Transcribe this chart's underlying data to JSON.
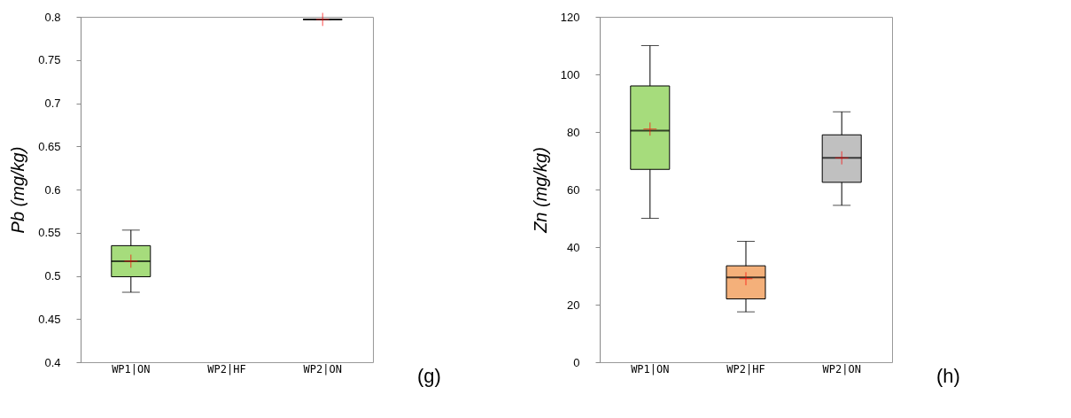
{
  "chart_data": [
    {
      "type": "box",
      "ylabel": "Pb (mg/kg)",
      "categories": [
        "WP1|ON",
        "WP2|HF",
        "WP2|ON"
      ],
      "colors": [
        "#a6dc7c",
        "#f4b07a",
        "#000000"
      ],
      "boxes": [
        {
          "low": 0.481,
          "q1": 0.499,
          "median": 0.517,
          "q3": 0.535,
          "high": 0.553,
          "mean": 0.517
        },
        null,
        {
          "low": 0.797,
          "q1": 0.797,
          "median": 0.797,
          "q3": 0.797,
          "high": 0.797,
          "mean": 0.797
        }
      ],
      "ylim": [
        0.4,
        0.8
      ],
      "yticks": [
        0.4,
        0.45,
        0.5,
        0.55,
        0.6,
        0.65,
        0.7,
        0.75,
        0.8
      ],
      "grid": false,
      "marker": "cross",
      "annotations": [
        "(g)"
      ]
    },
    {
      "type": "box",
      "ylabel": "Zn (mg/kg)",
      "categories": [
        "WP1|ON",
        "WP2|HF",
        "WP2|ON"
      ],
      "colors": [
        "#a6dc7c",
        "#f4b07a",
        "#c0c0c0"
      ],
      "boxes": [
        {
          "low": 50,
          "q1": 67,
          "median": 80.5,
          "q3": 96,
          "high": 110,
          "mean": 81
        },
        {
          "low": 17.5,
          "q1": 22,
          "median": 29.5,
          "q3": 33.5,
          "high": 42,
          "mean": 29
        },
        {
          "low": 54.5,
          "q1": 62.5,
          "median": 71,
          "q3": 79,
          "high": 87,
          "mean": 71
        }
      ],
      "ylim": [
        0,
        120
      ],
      "yticks": [
        0,
        20,
        40,
        60,
        80,
        100,
        120
      ],
      "grid": false,
      "marker": "cross",
      "annotations": [
        "(h)"
      ]
    }
  ]
}
